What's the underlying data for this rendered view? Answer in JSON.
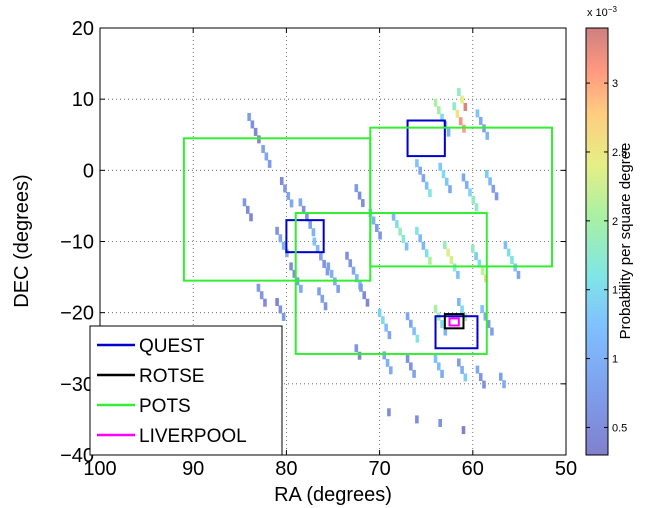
{
  "chart_data": {
    "type": "heatmap",
    "title": "",
    "xlabel": "RA (degrees)",
    "ylabel": "DEC (degrees)",
    "xlim": [
      100,
      50
    ],
    "ylim": [
      -40,
      20
    ],
    "x_reversed": true,
    "x_ticks": [
      "100",
      "90",
      "80",
      "70",
      "60",
      "50"
    ],
    "y_ticks": [
      "20",
      "10",
      "0",
      "−10",
      "−20",
      "−30",
      "−40"
    ],
    "grid": "dotted",
    "colorbar": {
      "label": "Probability per square degree",
      "multiplier": "x 10",
      "exponent": "−3",
      "range": [
        0.3,
        3.4
      ],
      "ticks": [
        "0.5",
        "1",
        "1.5",
        "2",
        "2.5",
        "3"
      ]
    },
    "legend_position": "bottom-left",
    "series": [
      {
        "name": "QUEST",
        "color": "#0000cc",
        "boxes": [
          [
            67,
            63,
            2,
            7
          ],
          [
            80,
            76,
            -11.5,
            -7
          ],
          [
            64,
            59.5,
            -25,
            -20.5
          ]
        ]
      },
      {
        "name": "ROTSE",
        "color": "#000000",
        "boxes": [
          [
            63,
            61,
            -22.2,
            -20.2
          ]
        ]
      },
      {
        "name": "POTS",
        "color": "#33ee33",
        "boxes": [
          [
            91,
            71,
            -15.5,
            4.5
          ],
          [
            71,
            51.5,
            -13.5,
            6
          ],
          [
            79,
            58.5,
            -25.8,
            -6
          ]
        ]
      },
      {
        "name": "LIVERPOOL",
        "color": "#ff00ff",
        "boxes": [
          [
            62.5,
            61.5,
            -21.8,
            -20.8
          ]
        ]
      }
    ],
    "probability_streaks": [
      {
        "ra": 84.0,
        "dec": 7.5,
        "len": 4,
        "p": 0.7
      },
      {
        "ra": 82.5,
        "dec": 3.0,
        "len": 3,
        "p": 0.75
      },
      {
        "ra": 80.5,
        "dec": -1.5,
        "len": 4,
        "p": 0.8
      },
      {
        "ra": 84.5,
        "dec": -4.5,
        "len": 3,
        "p": 0.7
      },
      {
        "ra": 78.5,
        "dec": -4.5,
        "len": 5,
        "p": 1.0
      },
      {
        "ra": 81.0,
        "dec": -8.5,
        "len": 4,
        "p": 0.9
      },
      {
        "ra": 77.0,
        "dec": -10.0,
        "len": 5,
        "p": 1.1
      },
      {
        "ra": 79.5,
        "dec": -13.5,
        "len": 4,
        "p": 0.85
      },
      {
        "ra": 75.5,
        "dec": -13.5,
        "len": 4,
        "p": 0.9
      },
      {
        "ra": 73.5,
        "dec": -12.0,
        "len": 5,
        "p": 1.0
      },
      {
        "ra": 76.5,
        "dec": -17.0,
        "len": 3,
        "p": 0.7
      },
      {
        "ra": 72.0,
        "dec": -16.5,
        "len": 3,
        "p": 0.75
      },
      {
        "ra": 83.0,
        "dec": -16.5,
        "len": 3,
        "p": 0.6
      },
      {
        "ra": 81.0,
        "dec": -18.5,
        "len": 3,
        "p": 0.6
      },
      {
        "ra": 72.5,
        "dec": -2.5,
        "len": 3,
        "p": 0.9
      },
      {
        "ra": 71.0,
        "dec": -6.0,
        "len": 4,
        "p": 1.1
      },
      {
        "ra": 68.5,
        "dec": -6.5,
        "len": 5,
        "p": 1.6
      },
      {
        "ra": 66.0,
        "dec": -8.5,
        "len": 5,
        "p": 1.9
      },
      {
        "ra": 63.0,
        "dec": -10.5,
        "len": 5,
        "p": 2.1
      },
      {
        "ra": 60.0,
        "dec": -11.0,
        "len": 5,
        "p": 2.4
      },
      {
        "ra": 56.5,
        "dec": -10.5,
        "len": 5,
        "p": 1.4
      },
      {
        "ra": 66.0,
        "dec": 1.0,
        "len": 5,
        "p": 1.5
      },
      {
        "ra": 63.5,
        "dec": 0.5,
        "len": 4,
        "p": 1.3
      },
      {
        "ra": 61.0,
        "dec": -1.0,
        "len": 5,
        "p": 1.6
      },
      {
        "ra": 58.5,
        "dec": -0.5,
        "len": 4,
        "p": 1.2
      },
      {
        "ra": 64.0,
        "dec": 9.5,
        "len": 5,
        "p": 1.8
      },
      {
        "ra": 62.0,
        "dec": 9.0,
        "len": 4,
        "p": 2.8
      },
      {
        "ra": 59.5,
        "dec": 8.0,
        "len": 4,
        "p": 1.4
      },
      {
        "ra": 61.5,
        "dec": 11.0,
        "len": 3,
        "p": 3.2
      },
      {
        "ra": 70.0,
        "dec": -20.0,
        "len": 4,
        "p": 1.3
      },
      {
        "ra": 67.0,
        "dec": -20.5,
        "len": 4,
        "p": 1.5
      },
      {
        "ra": 64.0,
        "dec": -19.5,
        "len": 4,
        "p": 1.8
      },
      {
        "ra": 61.5,
        "dec": -18.5,
        "len": 3,
        "p": 2.0
      },
      {
        "ra": 59.0,
        "dec": -19.5,
        "len": 4,
        "p": 1.2
      },
      {
        "ra": 72.5,
        "dec": -25.0,
        "len": 2,
        "p": 0.8
      },
      {
        "ra": 69.5,
        "dec": -26.0,
        "len": 3,
        "p": 0.9
      },
      {
        "ra": 67.0,
        "dec": -26.5,
        "len": 3,
        "p": 1.0
      },
      {
        "ra": 64.0,
        "dec": -26.5,
        "len": 3,
        "p": 1.1
      },
      {
        "ra": 61.5,
        "dec": -27.0,
        "len": 3,
        "p": 1.3
      },
      {
        "ra": 59.5,
        "dec": -28.0,
        "len": 3,
        "p": 1.0
      },
      {
        "ra": 57.0,
        "dec": -29.0,
        "len": 2,
        "p": 0.8
      },
      {
        "ra": 69.0,
        "dec": -34.0,
        "len": 1,
        "p": 0.6
      },
      {
        "ra": 66.0,
        "dec": -35.0,
        "len": 1,
        "p": 0.6
      },
      {
        "ra": 63.5,
        "dec": -35.5,
        "len": 1,
        "p": 0.55
      },
      {
        "ra": 61.0,
        "dec": -36.5,
        "len": 1,
        "p": 0.55
      }
    ]
  }
}
